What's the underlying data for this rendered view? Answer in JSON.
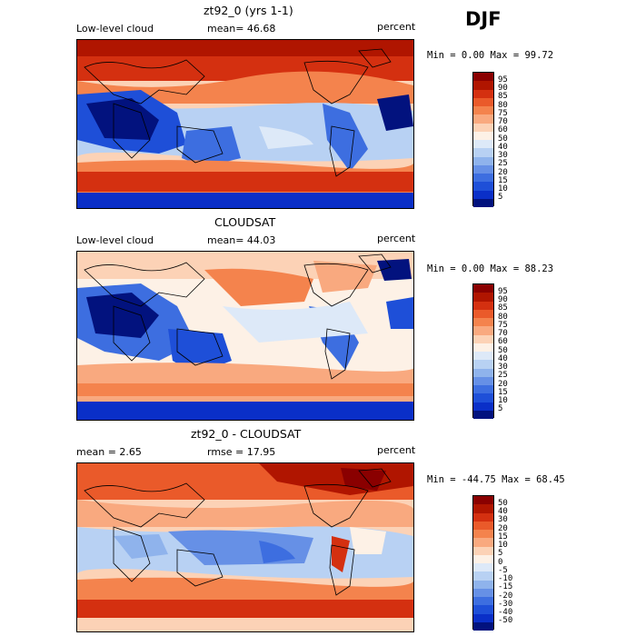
{
  "season": "DJF",
  "panels": [
    {
      "title": "zt92_0 (yrs 1-1)",
      "left_label": "Low-level cloud",
      "center_label": "mean=  46.68",
      "right_label": "percent",
      "minmax": "Min =   0.00 Max =  99.72",
      "levels": [
        "95",
        "90",
        "85",
        "80",
        "75",
        "70",
        "60",
        "50",
        "40",
        "30",
        "25",
        "20",
        "15",
        "10",
        "5"
      ],
      "colors": [
        "#8a0000",
        "#b01500",
        "#d43010",
        "#ea5a2a",
        "#f4834d",
        "#f9a97f",
        "#fcd2b6",
        "#fdf1e6",
        "#dde9f8",
        "#b8d1f3",
        "#8fb3ec",
        "#6690e6",
        "#3d6ee0",
        "#1e4fd8",
        "#0a2fc8",
        "#02127e"
      ]
    },
    {
      "title": "CLOUDSAT",
      "left_label": "Low-level cloud",
      "center_label": "mean=  44.03",
      "right_label": "percent",
      "minmax": "Min =   0.00 Max =  88.23",
      "levels": [
        "95",
        "90",
        "85",
        "80",
        "75",
        "70",
        "60",
        "50",
        "40",
        "30",
        "25",
        "20",
        "15",
        "10",
        "5"
      ],
      "colors": [
        "#8a0000",
        "#b01500",
        "#d43010",
        "#ea5a2a",
        "#f4834d",
        "#f9a97f",
        "#fcd2b6",
        "#fdf1e6",
        "#dde9f8",
        "#b8d1f3",
        "#8fb3ec",
        "#6690e6",
        "#3d6ee0",
        "#1e4fd8",
        "#0a2fc8",
        "#02127e"
      ]
    },
    {
      "title": "zt92_0 - CLOUDSAT",
      "left_label": "mean =   2.65",
      "center_label": "rmse =  17.95",
      "right_label": "percent",
      "minmax": "Min = -44.75 Max =  68.45",
      "levels": [
        "50",
        "40",
        "30",
        "20",
        "15",
        "10",
        "5",
        "0",
        "-5",
        "-10",
        "-15",
        "-20",
        "-30",
        "-40",
        "-50"
      ],
      "colors": [
        "#8a0000",
        "#b01500",
        "#d43010",
        "#ea5a2a",
        "#f4834d",
        "#f9a97f",
        "#fcd2b6",
        "#fdf1e6",
        "#dde9f8",
        "#b8d1f3",
        "#8fb3ec",
        "#6690e6",
        "#3d6ee0",
        "#1e4fd8",
        "#0a2fc8",
        "#02127e"
      ]
    }
  ]
}
